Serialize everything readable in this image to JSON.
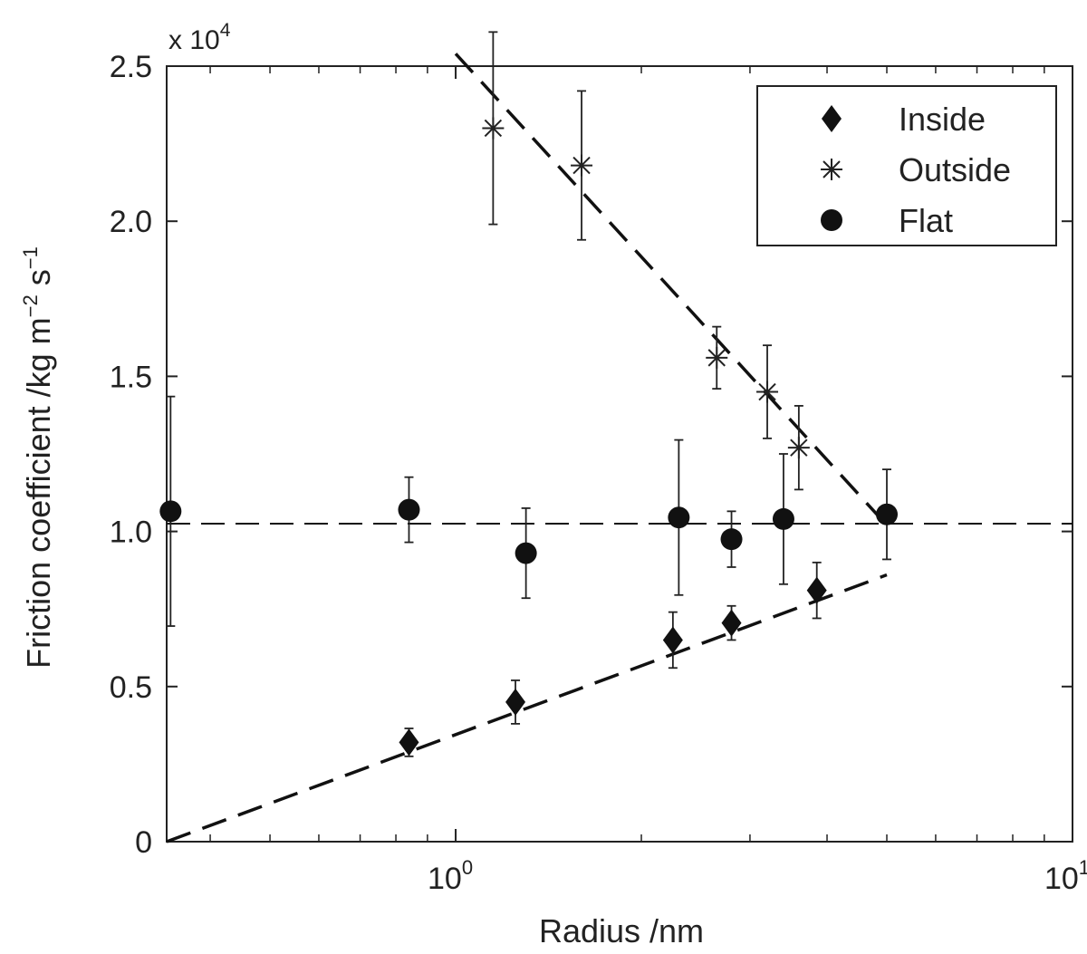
{
  "chart_data": {
    "type": "scatter",
    "title": "",
    "xlabel": "Radius /nm",
    "ylabel": "Friction coefficient /kg m",
    "ylabel_sup1": "−2",
    "ylabel_mid": " s",
    "ylabel_sup2": "−1",
    "y_multiplier": {
      "base": "x 10",
      "exponent": "4"
    },
    "x_scale": "log",
    "xlim": [
      0.34,
      10
    ],
    "ylim": [
      0,
      25000
    ],
    "x_ticks": [
      {
        "value": 1,
        "base": "10",
        "exp": "0"
      },
      {
        "value": 10,
        "base": "10",
        "exp": "1"
      }
    ],
    "y_ticks": [
      {
        "value": 0,
        "label": "0"
      },
      {
        "value": 5000,
        "label": "0.5"
      },
      {
        "value": 10000,
        "label": "1.0"
      },
      {
        "value": 15000,
        "label": "1.5"
      },
      {
        "value": 20000,
        "label": "2.0"
      },
      {
        "value": 25000,
        "label": "2.5"
      }
    ],
    "legend_position": "top-right",
    "series": [
      {
        "name": "Inside",
        "marker": "diamond",
        "points": [
          {
            "x": 0.84,
            "y": 3200,
            "err": 450
          },
          {
            "x": 1.25,
            "y": 4500,
            "err": 700
          },
          {
            "x": 2.25,
            "y": 6500,
            "err": 900
          },
          {
            "x": 2.8,
            "y": 7050,
            "err": 550
          },
          {
            "x": 3.85,
            "y": 8100,
            "err": 900
          }
        ]
      },
      {
        "name": "Outside",
        "marker": "asterisk",
        "points": [
          {
            "x": 1.15,
            "y": 23000,
            "err": 3100
          },
          {
            "x": 1.6,
            "y": 21800,
            "err": 2400
          },
          {
            "x": 2.65,
            "y": 15600,
            "err": 1000
          },
          {
            "x": 3.2,
            "y": 14500,
            "err": 1500
          },
          {
            "x": 3.6,
            "y": 12700,
            "err": 1350
          }
        ]
      },
      {
        "name": "Flat",
        "marker": "circle",
        "points": [
          {
            "x": 0.345,
            "y": 10650,
            "err": 3700
          },
          {
            "x": 0.84,
            "y": 10700,
            "err": 1050
          },
          {
            "x": 1.3,
            "y": 9300,
            "err": 1450
          },
          {
            "x": 2.3,
            "y": 10450,
            "err": 2500
          },
          {
            "x": 2.8,
            "y": 9750,
            "err": 900
          },
          {
            "x": 3.4,
            "y": 10400,
            "err": 2100
          },
          {
            "x": 5.0,
            "y": 10550,
            "err": 1450
          }
        ]
      }
    ],
    "fit_lines": [
      {
        "name": "inside-fit",
        "style": "long-dash",
        "points": [
          [
            0.34,
            0
          ],
          [
            5.0,
            8600
          ]
        ]
      },
      {
        "name": "outside-fit",
        "style": "long-dash",
        "points": [
          [
            1.0,
            25400
          ],
          [
            5.0,
            10200
          ]
        ]
      },
      {
        "name": "flat-fit",
        "style": "short-dash",
        "points": [
          [
            0.34,
            10250
          ],
          [
            10,
            10250
          ]
        ]
      }
    ]
  }
}
